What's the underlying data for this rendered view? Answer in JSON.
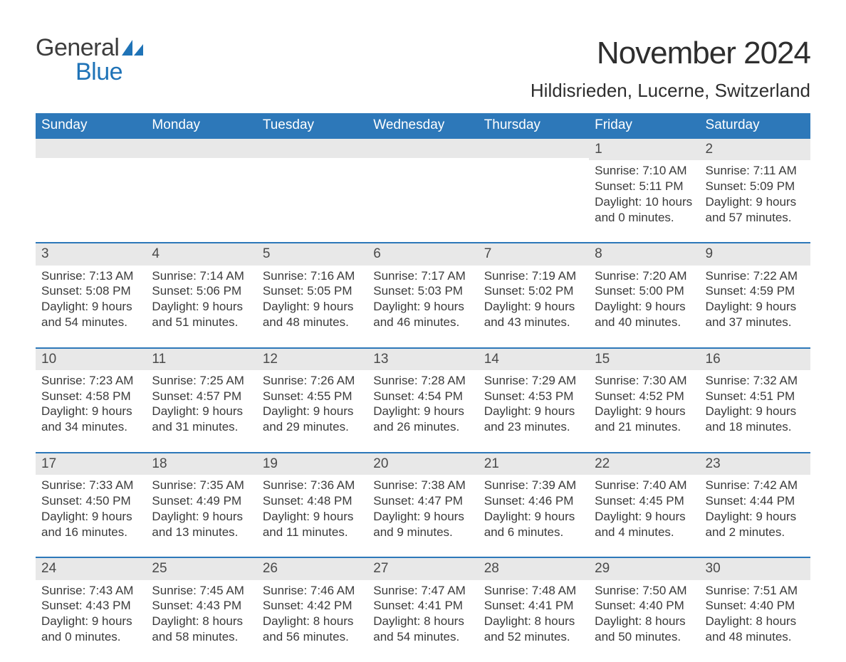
{
  "brand": {
    "name_part1": "General",
    "name_part2": "Blue"
  },
  "title": "November 2024",
  "location": "Hildisrieden, Lucerne, Switzerland",
  "colors": {
    "header_bg": "#2d78b9",
    "header_text": "#ffffff",
    "row_border": "#2d78b9",
    "daynum_bg": "#e8e8e8",
    "body_text": "#3a3a3a",
    "brand_gray": "#3d3d3d",
    "brand_blue": "#1f73b7",
    "page_bg": "#ffffff"
  },
  "typography": {
    "title_fontsize": 44,
    "location_fontsize": 26,
    "header_fontsize": 19,
    "cell_fontsize": 17,
    "daynum_fontsize": 19,
    "logo_fontsize": 34
  },
  "columns": [
    "Sunday",
    "Monday",
    "Tuesday",
    "Wednesday",
    "Thursday",
    "Friday",
    "Saturday"
  ],
  "weeks": [
    [
      {
        "day": null
      },
      {
        "day": null
      },
      {
        "day": null
      },
      {
        "day": null
      },
      {
        "day": null
      },
      {
        "day": 1,
        "sunrise": "7:10 AM",
        "sunset": "5:11 PM",
        "daylight_hours": 10,
        "daylight_minutes": 0
      },
      {
        "day": 2,
        "sunrise": "7:11 AM",
        "sunset": "5:09 PM",
        "daylight_hours": 9,
        "daylight_minutes": 57
      }
    ],
    [
      {
        "day": 3,
        "sunrise": "7:13 AM",
        "sunset": "5:08 PM",
        "daylight_hours": 9,
        "daylight_minutes": 54
      },
      {
        "day": 4,
        "sunrise": "7:14 AM",
        "sunset": "5:06 PM",
        "daylight_hours": 9,
        "daylight_minutes": 51
      },
      {
        "day": 5,
        "sunrise": "7:16 AM",
        "sunset": "5:05 PM",
        "daylight_hours": 9,
        "daylight_minutes": 48
      },
      {
        "day": 6,
        "sunrise": "7:17 AM",
        "sunset": "5:03 PM",
        "daylight_hours": 9,
        "daylight_minutes": 46
      },
      {
        "day": 7,
        "sunrise": "7:19 AM",
        "sunset": "5:02 PM",
        "daylight_hours": 9,
        "daylight_minutes": 43
      },
      {
        "day": 8,
        "sunrise": "7:20 AM",
        "sunset": "5:00 PM",
        "daylight_hours": 9,
        "daylight_minutes": 40
      },
      {
        "day": 9,
        "sunrise": "7:22 AM",
        "sunset": "4:59 PM",
        "daylight_hours": 9,
        "daylight_minutes": 37
      }
    ],
    [
      {
        "day": 10,
        "sunrise": "7:23 AM",
        "sunset": "4:58 PM",
        "daylight_hours": 9,
        "daylight_minutes": 34
      },
      {
        "day": 11,
        "sunrise": "7:25 AM",
        "sunset": "4:57 PM",
        "daylight_hours": 9,
        "daylight_minutes": 31
      },
      {
        "day": 12,
        "sunrise": "7:26 AM",
        "sunset": "4:55 PM",
        "daylight_hours": 9,
        "daylight_minutes": 29
      },
      {
        "day": 13,
        "sunrise": "7:28 AM",
        "sunset": "4:54 PM",
        "daylight_hours": 9,
        "daylight_minutes": 26
      },
      {
        "day": 14,
        "sunrise": "7:29 AM",
        "sunset": "4:53 PM",
        "daylight_hours": 9,
        "daylight_minutes": 23
      },
      {
        "day": 15,
        "sunrise": "7:30 AM",
        "sunset": "4:52 PM",
        "daylight_hours": 9,
        "daylight_minutes": 21
      },
      {
        "day": 16,
        "sunrise": "7:32 AM",
        "sunset": "4:51 PM",
        "daylight_hours": 9,
        "daylight_minutes": 18
      }
    ],
    [
      {
        "day": 17,
        "sunrise": "7:33 AM",
        "sunset": "4:50 PM",
        "daylight_hours": 9,
        "daylight_minutes": 16
      },
      {
        "day": 18,
        "sunrise": "7:35 AM",
        "sunset": "4:49 PM",
        "daylight_hours": 9,
        "daylight_minutes": 13
      },
      {
        "day": 19,
        "sunrise": "7:36 AM",
        "sunset": "4:48 PM",
        "daylight_hours": 9,
        "daylight_minutes": 11
      },
      {
        "day": 20,
        "sunrise": "7:38 AM",
        "sunset": "4:47 PM",
        "daylight_hours": 9,
        "daylight_minutes": 9
      },
      {
        "day": 21,
        "sunrise": "7:39 AM",
        "sunset": "4:46 PM",
        "daylight_hours": 9,
        "daylight_minutes": 6
      },
      {
        "day": 22,
        "sunrise": "7:40 AM",
        "sunset": "4:45 PM",
        "daylight_hours": 9,
        "daylight_minutes": 4
      },
      {
        "day": 23,
        "sunrise": "7:42 AM",
        "sunset": "4:44 PM",
        "daylight_hours": 9,
        "daylight_minutes": 2
      }
    ],
    [
      {
        "day": 24,
        "sunrise": "7:43 AM",
        "sunset": "4:43 PM",
        "daylight_hours": 9,
        "daylight_minutes": 0
      },
      {
        "day": 25,
        "sunrise": "7:45 AM",
        "sunset": "4:43 PM",
        "daylight_hours": 8,
        "daylight_minutes": 58
      },
      {
        "day": 26,
        "sunrise": "7:46 AM",
        "sunset": "4:42 PM",
        "daylight_hours": 8,
        "daylight_minutes": 56
      },
      {
        "day": 27,
        "sunrise": "7:47 AM",
        "sunset": "4:41 PM",
        "daylight_hours": 8,
        "daylight_minutes": 54
      },
      {
        "day": 28,
        "sunrise": "7:48 AM",
        "sunset": "4:41 PM",
        "daylight_hours": 8,
        "daylight_minutes": 52
      },
      {
        "day": 29,
        "sunrise": "7:50 AM",
        "sunset": "4:40 PM",
        "daylight_hours": 8,
        "daylight_minutes": 50
      },
      {
        "day": 30,
        "sunrise": "7:51 AM",
        "sunset": "4:40 PM",
        "daylight_hours": 8,
        "daylight_minutes": 48
      }
    ]
  ],
  "labels": {
    "sunrise": "Sunrise:",
    "sunset": "Sunset:",
    "daylight": "Daylight:",
    "hours_word": "hours",
    "and_word": "and",
    "minutes_word": "minutes."
  }
}
